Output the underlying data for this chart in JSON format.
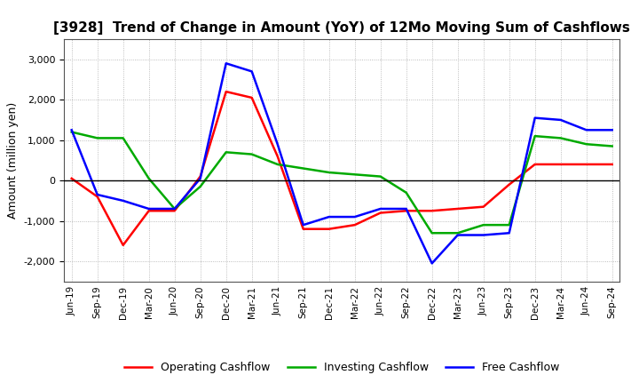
{
  "title": "[3928]  Trend of Change in Amount (YoY) of 12Mo Moving Sum of Cashflows",
  "ylabel": "Amount (million yen)",
  "x_labels": [
    "Jun-19",
    "Sep-19",
    "Dec-19",
    "Mar-20",
    "Jun-20",
    "Sep-20",
    "Dec-20",
    "Mar-21",
    "Jun-21",
    "Sep-21",
    "Dec-21",
    "Mar-22",
    "Jun-22",
    "Sep-22",
    "Dec-22",
    "Mar-23",
    "Jun-23",
    "Sep-23",
    "Dec-23",
    "Mar-24",
    "Jun-24",
    "Sep-24"
  ],
  "operating": [
    50,
    -400,
    -1600,
    -750,
    -750,
    100,
    2200,
    2050,
    600,
    -1200,
    -1200,
    -1100,
    -800,
    -750,
    -750,
    -700,
    -650,
    -100,
    400,
    400,
    400,
    400
  ],
  "investing": [
    1200,
    1050,
    1050,
    50,
    -700,
    -150,
    700,
    650,
    400,
    300,
    200,
    150,
    100,
    -300,
    -1300,
    -1300,
    -1100,
    -1100,
    1100,
    1050,
    900,
    850
  ],
  "free": [
    1250,
    -350,
    -500,
    -700,
    -700,
    50,
    2900,
    2700,
    900,
    -1100,
    -900,
    -900,
    -700,
    -700,
    -2050,
    -1350,
    -1350,
    -1300,
    1550,
    1500,
    1250,
    1250
  ],
  "ylim": [
    -2500,
    3500
  ],
  "yticks": [
    -2000,
    -1000,
    0,
    1000,
    2000,
    3000
  ],
  "operating_color": "#ff0000",
  "investing_color": "#00aa00",
  "free_color": "#0000ff",
  "bg_color": "#ffffff",
  "plot_bg_color": "#ffffff",
  "grid_color": "#aaaaaa",
  "line_width": 1.8,
  "legend_labels": [
    "Operating Cashflow",
    "Investing Cashflow",
    "Free Cashflow"
  ]
}
